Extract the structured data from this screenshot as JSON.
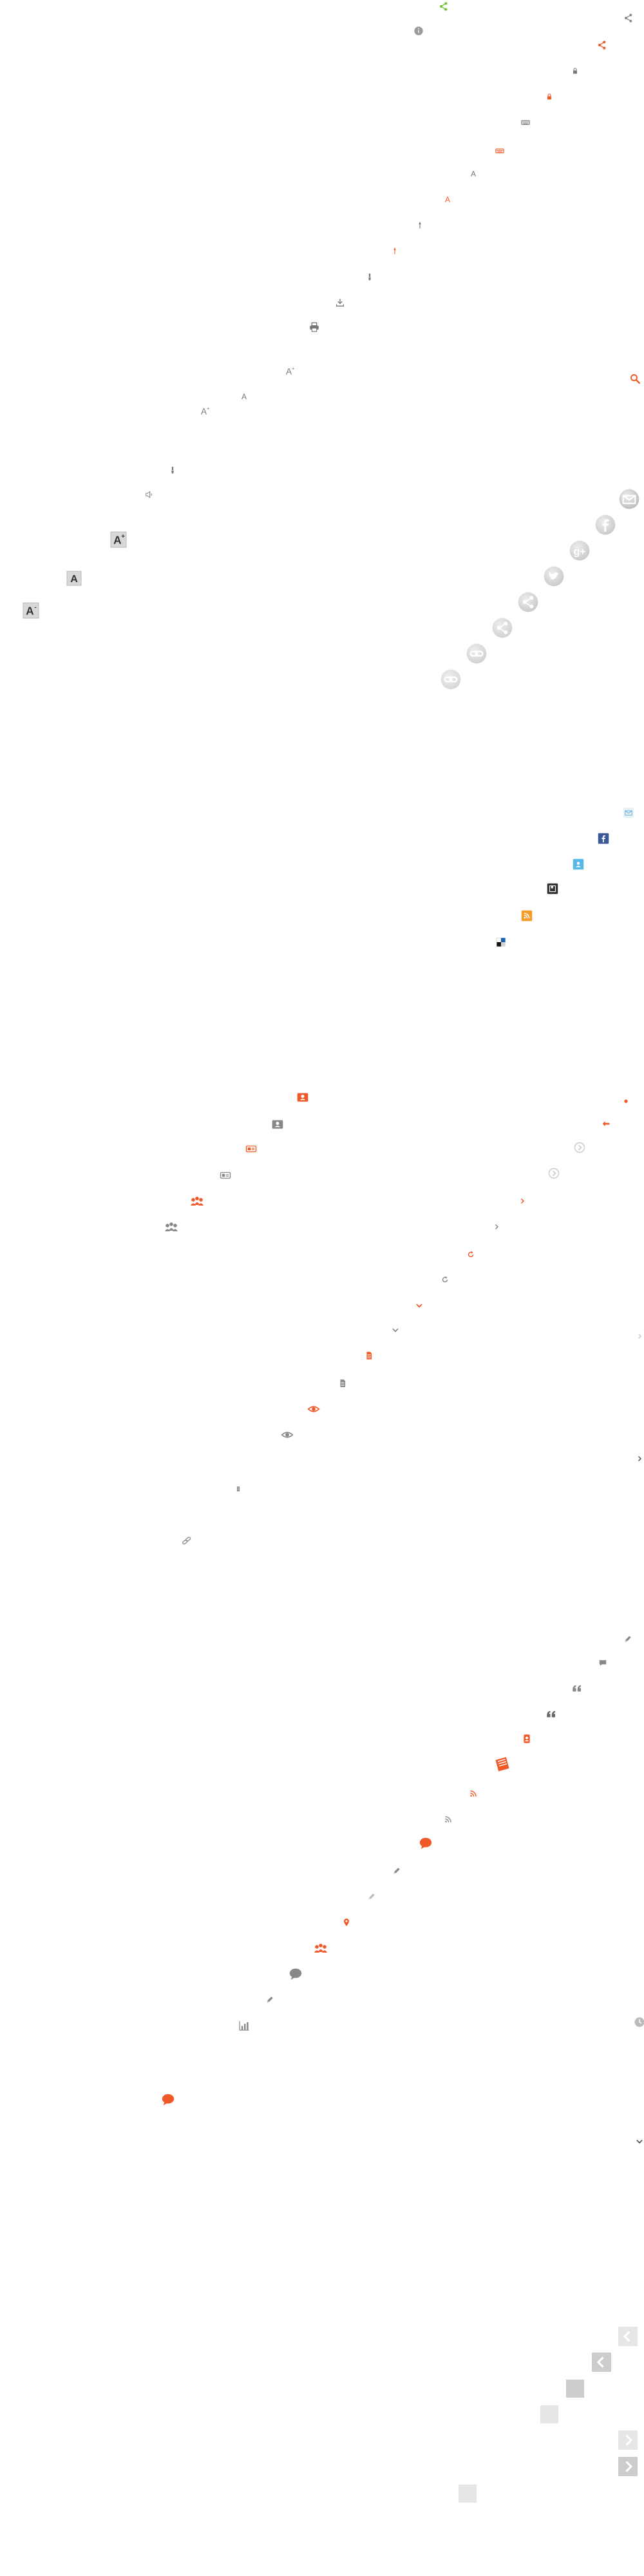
{
  "palette": {
    "orange": "#f05a28",
    "orange_light": "#f47a3f",
    "green": "#6fbf2a",
    "gray": "#8a8a8a",
    "gray_light": "#cfcfcf",
    "gray_lighter": "#e6e6e6",
    "dark": "#333333",
    "facebook_blue": "#3b5998",
    "teal": "#59b7e6",
    "rss_orange": "#f49b2a"
  },
  "icons": [
    {
      "name": "share-icon-green",
      "kind": "share-nodes",
      "color": "#6fbf2a"
    },
    {
      "name": "share-icon-gray",
      "kind": "share-nodes",
      "color": "#8a8a8a"
    },
    {
      "name": "share-icon-orange",
      "kind": "share-nodes",
      "color": "#f05a28"
    },
    {
      "name": "info-circle-icon",
      "kind": "info-circle",
      "color": "#9a9a9a"
    },
    {
      "name": "lock-icon",
      "kind": "lock",
      "color": "#777777"
    },
    {
      "name": "lock-icon-orange",
      "kind": "lock",
      "color": "#f05a28"
    },
    {
      "name": "keyboard-icon",
      "kind": "keyboard",
      "color": "#777777"
    },
    {
      "name": "keyboard-icon-orange",
      "kind": "keyboard",
      "color": "#f05a28"
    },
    {
      "name": "font-size-icon",
      "kind": "letter",
      "color": "#777777",
      "text": "A"
    },
    {
      "name": "font-size-icon-orange",
      "kind": "letter",
      "color": "#f05a28",
      "text": "A"
    },
    {
      "name": "pin-icon",
      "kind": "pin",
      "color": "#777777"
    },
    {
      "name": "pin-icon-orange",
      "kind": "pin",
      "color": "#f05a28"
    },
    {
      "name": "brush-icon",
      "kind": "brush",
      "color": "#777777"
    },
    {
      "name": "download-icon",
      "kind": "download",
      "color": "#777777"
    },
    {
      "name": "print-icon",
      "kind": "print",
      "color": "#777777"
    },
    {
      "name": "increase-font-icon",
      "kind": "letter-sup",
      "color": "#777777",
      "text": "A",
      "sup": "+"
    },
    {
      "name": "font-icon-large",
      "kind": "letter",
      "color": "#777777",
      "text": "A"
    },
    {
      "name": "increase-font-icon-small",
      "kind": "letter-sup",
      "color": "#777777",
      "text": "A",
      "sup": "+"
    },
    {
      "name": "brush-icon-small",
      "kind": "brush",
      "color": "#777777"
    },
    {
      "name": "speaker-icon",
      "kind": "speaker",
      "color": "#888888"
    },
    {
      "name": "increase-font-boxed-icon",
      "kind": "letter-box-sup",
      "color": "#333333",
      "text": "A",
      "sup": "+"
    },
    {
      "name": "font-boxed-icon",
      "kind": "letter-box",
      "color": "#333333",
      "text": "A"
    },
    {
      "name": "decrease-font-boxed-icon",
      "kind": "letter-box-sup",
      "color": "#333333",
      "text": "A",
      "sup": "-"
    },
    {
      "name": "search-icon-orange",
      "kind": "search",
      "color": "#f05a28"
    },
    {
      "name": "email-circle-icon",
      "kind": "circle-glyph",
      "color": "#bbbbbb",
      "glyph": "email"
    },
    {
      "name": "facebook-circle-icon",
      "kind": "circle-glyph",
      "color": "#c8c8c8",
      "glyph": "facebook"
    },
    {
      "name": "google-circle-icon",
      "kind": "circle-glyph",
      "color": "#c8c8c8",
      "glyph": "google"
    },
    {
      "name": "twitter-circle-icon",
      "kind": "circle-glyph",
      "color": "#c8c8c8",
      "glyph": "twitter"
    },
    {
      "name": "share-circle-icon",
      "kind": "circle-glyph",
      "color": "#c8c8c8",
      "glyph": "share"
    },
    {
      "name": "share-circle-icon-2",
      "kind": "circle-glyph",
      "color": "#d0d0d0",
      "glyph": "share"
    },
    {
      "name": "link-circle-icon",
      "kind": "circle-glyph",
      "color": "#d0d0d0",
      "glyph": "link"
    },
    {
      "name": "link-circle-icon-2",
      "kind": "circle-glyph",
      "color": "#d6d6d6",
      "glyph": "link"
    },
    {
      "name": "email-square-icon",
      "kind": "square-glyph",
      "color": "#e8f2f8",
      "glyph": "email"
    },
    {
      "name": "facebook-square-icon",
      "kind": "square-glyph",
      "color": "#3b5998",
      "glyph": "facebook"
    },
    {
      "name": "delicious-square-icon",
      "kind": "square-glyph",
      "color": "#59b7e6",
      "glyph": "bird"
    },
    {
      "name": "bookmark-square-icon",
      "kind": "square-glyph",
      "color": "#333333",
      "glyph": "bookmark"
    },
    {
      "name": "rss-square-icon",
      "kind": "square-glyph",
      "color": "#f49b2a",
      "glyph": "rss"
    },
    {
      "name": "delicious-mosaic-icon",
      "kind": "mosaic",
      "color": "#1d5fb2"
    },
    {
      "name": "profile-card-icon-orange",
      "kind": "card",
      "color": "#f05a28"
    },
    {
      "name": "profile-card-icon-gray",
      "kind": "card",
      "color": "#888888"
    },
    {
      "name": "vcard-icon-orange",
      "kind": "vcard",
      "color": "#f05a28"
    },
    {
      "name": "vcard-icon-gray",
      "kind": "vcard",
      "color": "#888888"
    },
    {
      "name": "group-icon-orange",
      "kind": "group",
      "color": "#f05a28"
    },
    {
      "name": "group-icon-gray",
      "kind": "group",
      "color": "#888888"
    },
    {
      "name": "dot-icon-orange",
      "kind": "dot",
      "color": "#f05a28"
    },
    {
      "name": "back-arrow-icon-orange",
      "kind": "back-arrow",
      "color": "#f05a28"
    },
    {
      "name": "chevron-circle-icon-light",
      "kind": "chevron-circle",
      "color": "#cfcfcf"
    },
    {
      "name": "chevron-circle-icon-light-2",
      "kind": "chevron-circle",
      "color": "#cfcfcf"
    },
    {
      "name": "chevron-right-icon-orange",
      "kind": "chevron-right",
      "color": "#f05a28"
    },
    {
      "name": "chevron-right-icon-gray",
      "kind": "chevron-right",
      "color": "#888888"
    },
    {
      "name": "refresh-icon-orange",
      "kind": "refresh",
      "color": "#f05a28"
    },
    {
      "name": "refresh-icon-gray",
      "kind": "refresh",
      "color": "#888888"
    },
    {
      "name": "chevron-down-icon-orange",
      "kind": "chevron-down",
      "color": "#f05a28"
    },
    {
      "name": "chevron-down-icon-gray",
      "kind": "chevron-down",
      "color": "#888888"
    },
    {
      "name": "document-icon-orange",
      "kind": "document",
      "color": "#f05a28"
    },
    {
      "name": "document-icon-gray",
      "kind": "document",
      "color": "#888888"
    },
    {
      "name": "eye-icon-orange",
      "kind": "eye",
      "color": "#f05a28"
    },
    {
      "name": "eye-icon-gray",
      "kind": "eye",
      "color": "#888888"
    },
    {
      "name": "small-doc-icon-gray",
      "kind": "document-small",
      "color": "#888888"
    },
    {
      "name": "link-icon-gray",
      "kind": "chain",
      "color": "#888888"
    },
    {
      "name": "chevron-right-icon-light",
      "kind": "chevron-right",
      "color": "#cccccc"
    },
    {
      "name": "chevron-right-icon-dark",
      "kind": "chevron-right",
      "color": "#555555"
    },
    {
      "name": "pencil-icon-gray",
      "kind": "pencil",
      "color": "#888888"
    },
    {
      "name": "comment-icon-gray",
      "kind": "speech",
      "color": "#888888"
    },
    {
      "name": "quote-icon-gray",
      "kind": "quote",
      "color": "#888888"
    },
    {
      "name": "quote-icon-dark",
      "kind": "quote",
      "color": "#666666"
    },
    {
      "name": "user-badge-icon-orange",
      "kind": "user-badge",
      "color": "#f05a28"
    },
    {
      "name": "book-icon-orange",
      "kind": "book",
      "color": "#f05a28"
    },
    {
      "name": "rss-icon-orange",
      "kind": "rss",
      "color": "#f05a28"
    },
    {
      "name": "rss-icon-gray",
      "kind": "rss",
      "color": "#888888"
    },
    {
      "name": "comment-icon-orange",
      "kind": "speech-fill",
      "color": "#f05a28"
    },
    {
      "name": "pencil-icon-gray-2",
      "kind": "pencil",
      "color": "#888888"
    },
    {
      "name": "pencil-icon-light",
      "kind": "pencil",
      "color": "#bbbbbb"
    },
    {
      "name": "location-pin-icon-orange",
      "kind": "location",
      "color": "#f05a28"
    },
    {
      "name": "group-icon-orange-2",
      "kind": "group",
      "color": "#f05a28"
    },
    {
      "name": "comment-icon-gray-2",
      "kind": "speech-fill",
      "color": "#888888"
    },
    {
      "name": "edit-pen-icon-gray",
      "kind": "pencil",
      "color": "#888888"
    },
    {
      "name": "bar-chart-icon-gray",
      "kind": "bars",
      "color": "#888888"
    },
    {
      "name": "clock-icon-light",
      "kind": "clock",
      "color": "#bbbbbb"
    },
    {
      "name": "comment-icon-orange-2",
      "kind": "speech-fill",
      "color": "#f05a28"
    },
    {
      "name": "chevron-down-icon-dark",
      "kind": "chevron-down",
      "color": "#555555"
    },
    {
      "name": "prev-arrow-icon-light",
      "kind": "arrow-box",
      "color": "#e6e6e6",
      "glyph": "left"
    },
    {
      "name": "prev-arrow-icon",
      "kind": "arrow-box",
      "color": "#cccccc",
      "glyph": "left"
    },
    {
      "name": "gray-square-icon",
      "kind": "block",
      "color": "#cccccc"
    },
    {
      "name": "gray-square-icon-light",
      "kind": "block",
      "color": "#e6e6e6"
    },
    {
      "name": "next-arrow-icon-light",
      "kind": "arrow-box",
      "color": "#e6e6e6",
      "glyph": "right"
    },
    {
      "name": "next-arrow-icon",
      "kind": "arrow-box",
      "color": "#cccccc",
      "glyph": "right"
    },
    {
      "name": "tiny-box-icon",
      "kind": "block",
      "color": "#e6e6e6"
    }
  ]
}
